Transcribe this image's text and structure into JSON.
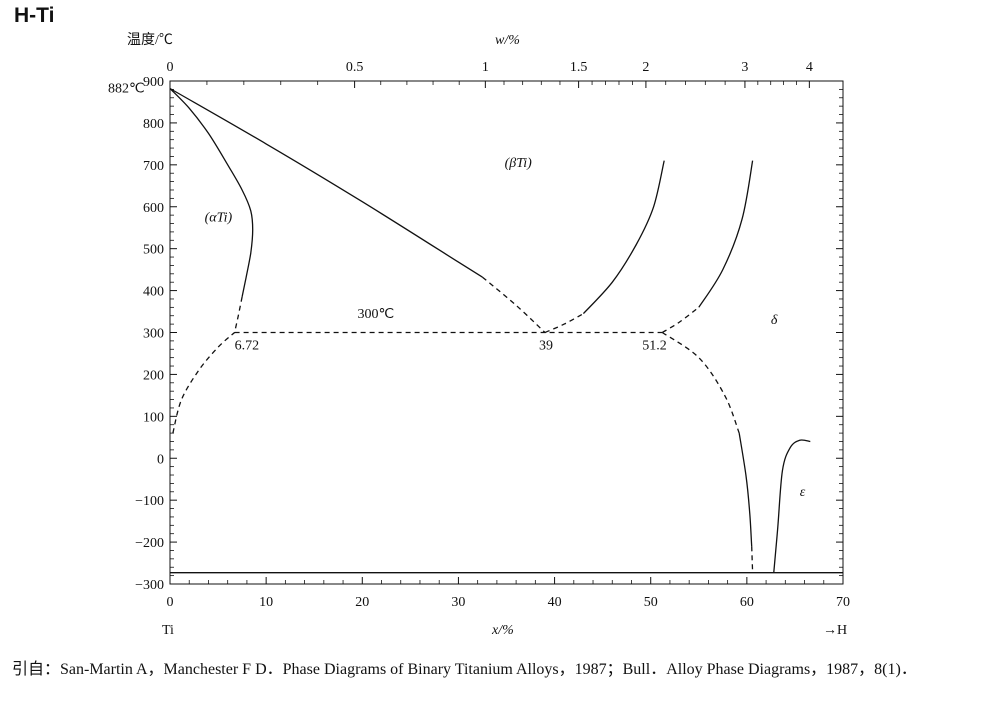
{
  "page": {
    "title": "H-Ti",
    "citation": "引自：San-Martin A，Manchester F D．Phase Diagrams of Binary Titanium Alloys，1987；Bull．Alloy Phase Diagrams，1987，8(1)．"
  },
  "chart_data": {
    "type": "phase-diagram",
    "title": "H-Ti",
    "xlabel": "x/%",
    "ylabel": "温度/℃",
    "top_xlabel": "w/%",
    "xlim": [
      0,
      70
    ],
    "ylim": [
      -300,
      900
    ],
    "x_ticks": [
      "0",
      "10",
      "20",
      "30",
      "40",
      "50",
      "60",
      "70"
    ],
    "x_tick_values": [
      0,
      10,
      20,
      30,
      40,
      50,
      60,
      70
    ],
    "y_ticks": [
      "900",
      "800",
      "700",
      "600",
      "500",
      "400",
      "300",
      "200",
      "100",
      "0",
      "−100",
      "−200",
      "−300"
    ],
    "y_tick_values": [
      900,
      800,
      700,
      600,
      500,
      400,
      300,
      200,
      100,
      0,
      -100,
      -200,
      -300
    ],
    "top_ticks": [
      "0",
      "0.5",
      "1",
      "1.5",
      "2",
      "3",
      "4"
    ],
    "top_tick_positions_x_at": [
      0,
      19.2,
      32.8,
      42.5,
      49.5,
      59.8,
      66.5
    ],
    "left_element": "Ti",
    "right_element": "→H",
    "grid": false,
    "regions": [
      {
        "label": "(αTi)",
        "x": 3.6,
        "y": 565
      },
      {
        "label": "(βTi)",
        "x": 34.8,
        "y": 695
      },
      {
        "label": "δ",
        "x": 62.5,
        "y": 320
      },
      {
        "label": "ε",
        "x": 65.5,
        "y": -90
      }
    ],
    "annotations": [
      {
        "text": "882℃",
        "x": 0,
        "y": 882
      },
      {
        "text": "300℃",
        "x": 19.5,
        "y": 320
      },
      {
        "text": "6.72",
        "x": 6.72,
        "y": 300
      },
      {
        "text": "39",
        "x": 39,
        "y": 300
      },
      {
        "text": "51.2",
        "x": 51.2,
        "y": 300
      }
    ],
    "series": [
      {
        "style": "solid",
        "points": [
          [
            0,
            882
          ],
          [
            2,
            835
          ],
          [
            4,
            775
          ],
          [
            6,
            700
          ],
          [
            7.5,
            640
          ],
          [
            8.4,
            590
          ],
          [
            8.6,
            545
          ],
          [
            8.4,
            490
          ],
          [
            7.9,
            430
          ],
          [
            7.5,
            385
          ]
        ]
      },
      {
        "style": "dashed",
        "points": [
          [
            7.5,
            385
          ],
          [
            7.1,
            340
          ],
          [
            6.72,
            300
          ]
        ]
      },
      {
        "style": "solid",
        "points": [
          [
            0,
            882
          ],
          [
            10,
            750
          ],
          [
            20,
            612
          ],
          [
            30,
            468
          ],
          [
            32.5,
            432
          ]
        ]
      },
      {
        "style": "dashed",
        "points": [
          [
            32.5,
            432
          ],
          [
            36,
            365
          ],
          [
            39,
            300
          ]
        ]
      },
      {
        "style": "dashed",
        "points": [
          [
            39,
            300
          ],
          [
            41,
            320
          ],
          [
            43,
            345
          ]
        ]
      },
      {
        "style": "solid",
        "points": [
          [
            43,
            345
          ],
          [
            46,
            420
          ],
          [
            48.5,
            510
          ],
          [
            50.3,
            600
          ],
          [
            51.4,
            710
          ]
        ]
      },
      {
        "style": "dashed",
        "points": [
          [
            51.2,
            300
          ],
          [
            53,
            325
          ],
          [
            55,
            360
          ]
        ]
      },
      {
        "style": "solid",
        "points": [
          [
            55,
            360
          ],
          [
            57.5,
            450
          ],
          [
            59.5,
            570
          ],
          [
            60.6,
            710
          ]
        ]
      },
      {
        "style": "dashed",
        "points": [
          [
            0.3,
            60
          ],
          [
            1.2,
            140
          ],
          [
            3,
            210
          ],
          [
            5,
            265
          ],
          [
            6.72,
            300
          ]
        ]
      },
      {
        "style": "dashed",
        "points": [
          [
            6.72,
            300
          ],
          [
            51.2,
            300
          ]
        ]
      },
      {
        "style": "dashed",
        "points": [
          [
            51.2,
            300
          ],
          [
            55,
            240
          ],
          [
            57.7,
            150
          ],
          [
            59.2,
            60
          ]
        ]
      },
      {
        "style": "solid",
        "points": [
          [
            59.2,
            60
          ],
          [
            59.9,
            -40
          ],
          [
            60.3,
            -130
          ],
          [
            60.5,
            -210
          ]
        ]
      },
      {
        "style": "dashed",
        "points": [
          [
            60.5,
            -210
          ],
          [
            60.6,
            -272
          ]
        ]
      },
      {
        "style": "solid",
        "points": [
          [
            62.8,
            -272
          ],
          [
            63.2,
            -170
          ],
          [
            63.7,
            -30
          ],
          [
            64.5,
            25
          ],
          [
            65.5,
            43
          ],
          [
            66.6,
            40
          ]
        ]
      },
      {
        "style": "solid",
        "points": [
          [
            0,
            -273
          ],
          [
            70,
            -273
          ]
        ]
      }
    ]
  }
}
